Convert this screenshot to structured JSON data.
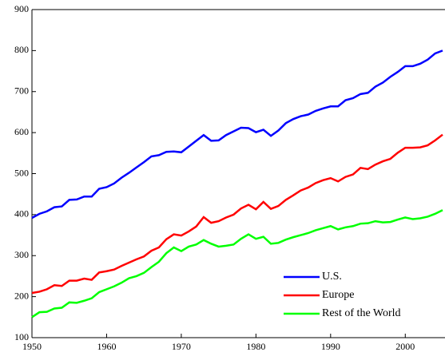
{
  "chart_data": {
    "type": "line",
    "x": [
      1950,
      1951,
      1952,
      1953,
      1954,
      1955,
      1956,
      1957,
      1958,
      1959,
      1960,
      1961,
      1962,
      1963,
      1964,
      1965,
      1966,
      1967,
      1968,
      1969,
      1970,
      1971,
      1972,
      1973,
      1974,
      1975,
      1976,
      1977,
      1978,
      1979,
      1980,
      1981,
      1982,
      1983,
      1984,
      1985,
      1986,
      1987,
      1988,
      1989,
      1990,
      1991,
      1992,
      1993,
      1994,
      1995,
      1996,
      1997,
      1998,
      1999,
      2000,
      2001,
      2002,
      2003,
      2004,
      2005
    ],
    "series": [
      {
        "name": "U.S.",
        "color": "#0000ff",
        "values": [
          392,
          402,
          408,
          418,
          420,
          436,
          437,
          444,
          444,
          463,
          467,
          476,
          490,
          502,
          515,
          528,
          542,
          545,
          553,
          554,
          552,
          566,
          580,
          594,
          580,
          581,
          594,
          603,
          612,
          611,
          601,
          607,
          592,
          605,
          623,
          633,
          640,
          644,
          653,
          659,
          664,
          664,
          679,
          684,
          694,
          697,
          712,
          722,
          736,
          748,
          762,
          762,
          768,
          778,
          793,
          800
        ]
      },
      {
        "name": "Europe",
        "color": "#ff0000",
        "values": [
          209,
          212,
          218,
          228,
          226,
          239,
          239,
          244,
          241,
          259,
          262,
          266,
          275,
          283,
          291,
          298,
          312,
          320,
          340,
          352,
          349,
          359,
          371,
          394,
          380,
          384,
          393,
          400,
          415,
          424,
          413,
          431,
          414,
          421,
          436,
          447,
          459,
          466,
          477,
          484,
          489,
          481,
          492,
          498,
          514,
          511,
          522,
          530,
          536,
          551,
          563,
          563,
          564,
          569,
          581,
          595
        ]
      },
      {
        "name": "Rest of the World",
        "color": "#00ff00",
        "values": [
          150,
          162,
          163,
          171,
          173,
          186,
          185,
          190,
          196,
          211,
          218,
          225,
          234,
          245,
          250,
          258,
          272,
          285,
          306,
          320,
          311,
          322,
          327,
          338,
          329,
          322,
          324,
          327,
          341,
          352,
          341,
          346,
          329,
          331,
          339,
          345,
          350,
          355,
          362,
          367,
          372,
          364,
          369,
          372,
          378,
          379,
          384,
          381,
          382,
          388,
          393,
          389,
          391,
          395,
          402,
          411
        ]
      }
    ],
    "xlim": [
      1950,
      2005
    ],
    "xticks": [
      1950,
      1960,
      1970,
      1980,
      1990,
      2000
    ],
    "ylim": [
      100,
      900
    ],
    "yticks": [
      100,
      200,
      300,
      400,
      500,
      600,
      700,
      800,
      900
    ],
    "legend": "lower right"
  }
}
